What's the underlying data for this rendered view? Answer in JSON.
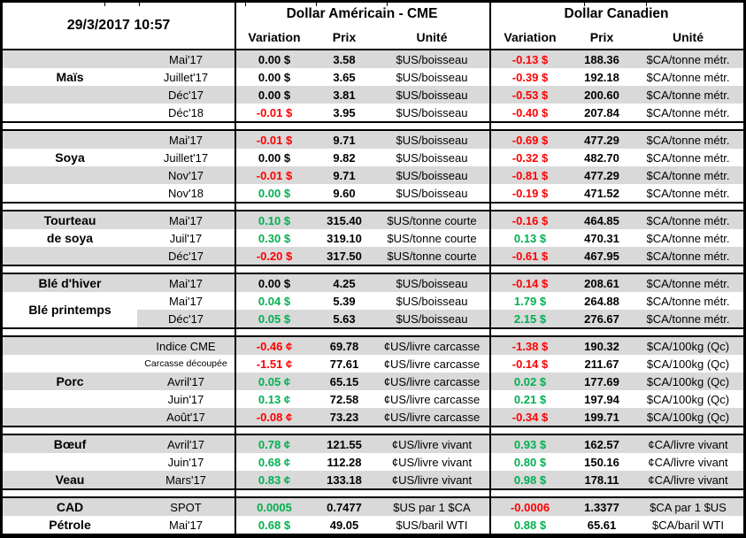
{
  "title_datetime": "29/3/2017 10:57",
  "colors": {
    "k": "#000000",
    "r": "#FF0000",
    "g": "#00B050",
    "stripe": "#D9D9D9"
  },
  "header": {
    "us_title": "Dollar Américain - CME",
    "ca_title": "Dollar Canadien",
    "col_variation": "Variation",
    "col_prix": "Prix",
    "col_unite": "Unité"
  },
  "sections": [
    {
      "name": "mais",
      "labels": [
        {
          "text": "Maïs",
          "row": 1,
          "span": 1
        }
      ],
      "whiteLabelRows": [],
      "rows": [
        {
          "m": "Mai'17",
          "uv": "0.00 $",
          "uc": "k",
          "up": "3.58",
          "uu": "$US/boisseau",
          "cv": "-0.13 $",
          "cc": "r",
          "cp": "188.36",
          "cu": "$CA/tonne métr."
        },
        {
          "m": "Juillet'17",
          "uv": "0.00 $",
          "uc": "k",
          "up": "3.65",
          "uu": "$US/boisseau",
          "cv": "-0.39 $",
          "cc": "r",
          "cp": "192.18",
          "cu": "$CA/tonne métr."
        },
        {
          "m": "Déc'17",
          "uv": "0.00 $",
          "uc": "k",
          "up": "3.81",
          "uu": "$US/boisseau",
          "cv": "-0.53 $",
          "cc": "r",
          "cp": "200.60",
          "cu": "$CA/tonne métr."
        },
        {
          "m": "Déc'18",
          "uv": "-0.01 $",
          "uc": "r",
          "up": "3.95",
          "uu": "$US/boisseau",
          "cv": "-0.40 $",
          "cc": "r",
          "cp": "207.84",
          "cu": "$CA/tonne métr."
        }
      ]
    },
    {
      "name": "soya",
      "labels": [
        {
          "text": "Soya",
          "row": 1,
          "span": 1
        }
      ],
      "whiteLabelRows": [],
      "rows": [
        {
          "m": "Mai'17",
          "uv": "-0.01 $",
          "uc": "r",
          "up": "9.71",
          "uu": "$US/boisseau",
          "cv": "-0.69 $",
          "cc": "r",
          "cp": "477.29",
          "cu": "$CA/tonne métr."
        },
        {
          "m": "Juillet'17",
          "uv": "0.00 $",
          "uc": "k",
          "up": "9.82",
          "uu": "$US/boisseau",
          "cv": "-0.32 $",
          "cc": "r",
          "cp": "482.70",
          "cu": "$CA/tonne métr."
        },
        {
          "m": "Nov'17",
          "uv": "-0.01 $",
          "uc": "r",
          "up": "9.71",
          "uu": "$US/boisseau",
          "cv": "-0.81 $",
          "cc": "r",
          "cp": "477.29",
          "cu": "$CA/tonne métr."
        },
        {
          "m": "Nov'18",
          "uv": "0.00 $",
          "uc": "g",
          "up": "9.60",
          "uu": "$US/boisseau",
          "cv": "-0.19 $",
          "cc": "r",
          "cp": "471.52",
          "cu": "$CA/tonne métr."
        }
      ]
    },
    {
      "name": "tourteau-de-soya",
      "labels": [
        {
          "text": "Tourteau",
          "row": 0,
          "span": 1
        },
        {
          "text": "de soya",
          "row": 1,
          "span": 1
        }
      ],
      "whiteLabelRows": [],
      "rows": [
        {
          "m": "Mai'17",
          "uv": "0.10 $",
          "uc": "g",
          "up": "315.40",
          "uu": "$US/tonne courte",
          "cv": "-0.16 $",
          "cc": "r",
          "cp": "464.85",
          "cu": "$CA/tonne métr."
        },
        {
          "m": "Juil'17",
          "uv": "0.30 $",
          "uc": "g",
          "up": "319.10",
          "uu": "$US/tonne courte",
          "cv": "0.13 $",
          "cc": "g",
          "cp": "470.31",
          "cu": "$CA/tonne métr."
        },
        {
          "m": "Déc'17",
          "uv": "-0.20 $",
          "uc": "r",
          "up": "317.50",
          "uu": "$US/tonne courte",
          "cv": "-0.61 $",
          "cc": "r",
          "cp": "467.95",
          "cu": "$CA/tonne métr."
        }
      ]
    },
    {
      "name": "ble",
      "labels": [
        {
          "text": "Blé d'hiver",
          "row": 0,
          "span": 1
        },
        {
          "text": "Blé printemps",
          "row": 1,
          "span": 2
        }
      ],
      "whiteLabelRows": [
        2
      ],
      "rows": [
        {
          "m": "Mai'17",
          "uv": "0.00 $",
          "uc": "k",
          "up": "4.25",
          "uu": "$US/boisseau",
          "cv": "-0.14 $",
          "cc": "r",
          "cp": "208.61",
          "cu": "$CA/tonne métr."
        },
        {
          "m": "Mai'17",
          "uv": "0.04 $",
          "uc": "g",
          "up": "5.39",
          "uu": "$US/boisseau",
          "cv": "1.79 $",
          "cc": "g",
          "cp": "264.88",
          "cu": "$CA/tonne métr."
        },
        {
          "m": "Déc'17",
          "uv": "0.05 $",
          "uc": "g",
          "up": "5.63",
          "uu": "$US/boisseau",
          "cv": "2.15 $",
          "cc": "g",
          "cp": "276.67",
          "cu": "$CA/tonne métr."
        }
      ]
    },
    {
      "name": "porc",
      "labels": [
        {
          "text": "Porc",
          "row": 2,
          "span": 1
        }
      ],
      "whiteLabelRows": [],
      "rows": [
        {
          "m": "Indice CME",
          "uv": "-0.46 ¢",
          "uc": "r",
          "up": "69.78",
          "uu": "¢US/livre carcasse",
          "cv": "-1.38 $",
          "cc": "r",
          "cp": "190.32",
          "cu": "$CA/100kg (Qc)"
        },
        {
          "m": "Carcasse découpée",
          "small": true,
          "uv": "-1.51 ¢",
          "uc": "r",
          "up": "77.61",
          "uu": "¢US/livre carcasse",
          "cv": "-0.14 $",
          "cc": "r",
          "cp": "211.67",
          "cu": "$CA/100kg (Qc)"
        },
        {
          "m": "Avril'17",
          "uv": "0.05 ¢",
          "uc": "g",
          "up": "65.15",
          "uu": "¢US/livre carcasse",
          "cv": "0.02 $",
          "cc": "g",
          "cp": "177.69",
          "cu": "$CA/100kg (Qc)"
        },
        {
          "m": "Juin'17",
          "uv": "0.13 ¢",
          "uc": "g",
          "up": "72.58",
          "uu": "¢US/livre carcasse",
          "cv": "0.21 $",
          "cc": "g",
          "cp": "197.94",
          "cu": "$CA/100kg (Qc)"
        },
        {
          "m": "Août'17",
          "uv": "-0.08 ¢",
          "uc": "r",
          "up": "73.23",
          "uu": "¢US/livre carcasse",
          "cv": "-0.34 $",
          "cc": "r",
          "cp": "199.71",
          "cu": "$CA/100kg (Qc)"
        }
      ]
    },
    {
      "name": "boeuf-veau",
      "labels": [
        {
          "text": "Bœuf",
          "row": 0,
          "span": 1
        },
        {
          "text": "Veau",
          "row": 2,
          "span": 1
        }
      ],
      "whiteLabelRows": [],
      "rows": [
        {
          "m": "Avril'17",
          "uv": "0.78 ¢",
          "uc": "g",
          "up": "121.55",
          "uu": "¢US/livre vivant",
          "cv": "0.93 $",
          "cc": "g",
          "cp": "162.57",
          "cu": "¢CA/livre vivant"
        },
        {
          "m": "Juin'17",
          "uv": "0.68 ¢",
          "uc": "g",
          "up": "112.28",
          "uu": "¢US/livre vivant",
          "cv": "0.80 $",
          "cc": "g",
          "cp": "150.16",
          "cu": "¢CA/livre vivant"
        },
        {
          "m": "Mars'17",
          "uv": "0.83 ¢",
          "uc": "g",
          "up": "133.18",
          "uu": "¢US/livre vivant",
          "cv": "0.98 $",
          "cc": "g",
          "cp": "178.11",
          "cu": "¢CA/livre vivant"
        }
      ]
    },
    {
      "name": "cad-petrole",
      "labels": [
        {
          "text": "CAD",
          "row": 0,
          "span": 1
        },
        {
          "text": "Pétrole",
          "row": 1,
          "span": 1
        }
      ],
      "whiteLabelRows": [],
      "rows": [
        {
          "m": "SPOT",
          "uv": "0.0005",
          "uc": "g",
          "up": "0.7477",
          "uu": "$US par 1 $CA",
          "cv": "-0.0006",
          "cc": "r",
          "cp": "1.3377",
          "cu": "$CA par 1 $US"
        },
        {
          "m": "Mai'17",
          "uv": "0.68 $",
          "uc": "g",
          "up": "49.05",
          "uu": "$US/baril WTI",
          "cv": "0.88 $",
          "cc": "g",
          "cp": "65.61",
          "cu": "$CA/baril WTI"
        }
      ]
    }
  ]
}
